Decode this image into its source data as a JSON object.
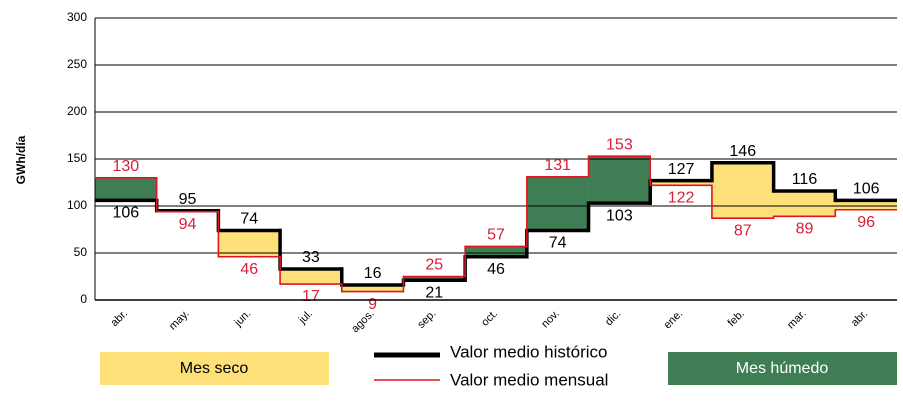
{
  "chart_data": {
    "type": "step",
    "ylabel": "GWh/día",
    "categories": [
      "abr.",
      "may.",
      "jun.",
      "jul.",
      "agos.",
      "sep.",
      "oct.",
      "nov.",
      "dic.",
      "ene.",
      "feb.",
      "mar.",
      "abr."
    ],
    "series": [
      {
        "name": "Valor medio histórico",
        "color": "#000000",
        "values": [
          106,
          95,
          74,
          33,
          16,
          21,
          46,
          74,
          103,
          127,
          146,
          116,
          106
        ]
      },
      {
        "name": "Valor medio mensual",
        "color": "#e3141e",
        "values": [
          130,
          94,
          46,
          17,
          9,
          25,
          57,
          131,
          153,
          122,
          87,
          89,
          96
        ]
      }
    ],
    "fills": [
      {
        "name": "Mes seco",
        "color": "#fde07a"
      },
      {
        "name": "Mes húmedo",
        "color": "#3f7e55"
      }
    ],
    "ylim": [
      0,
      300
    ],
    "yticks": [
      0,
      50,
      100,
      150,
      200,
      250,
      300
    ],
    "grid": true
  }
}
